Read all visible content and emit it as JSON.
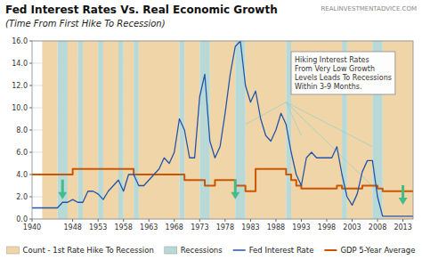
{
  "chart_data": {
    "type": "line",
    "title": "Fed Interest Rates Vs. Real Economic Growth",
    "subtitle": "(Time From First Hike To Recession)",
    "annotations": [
      {
        "text": "REALINVESTMENTADVICE.COM"
      },
      {
        "text": "Hiking Interest Rates\nFrom Very Low Growth\nLevels Leads To Recessions\nWithin 3-9 Months.",
        "x": 1991,
        "y": 11.2
      }
    ],
    "xlim": [
      1940,
      2015
    ],
    "ylim": [
      0.0,
      16.0
    ],
    "xticks": [
      1940,
      1948,
      1953,
      1958,
      1963,
      1968,
      1973,
      1978,
      1983,
      1988,
      1993,
      1998,
      2003,
      2008,
      2013
    ],
    "yticks": [
      {
        "value": 0.0,
        "label": "0.0"
      },
      {
        "value": 2.0,
        "label": "2.0"
      },
      {
        "value": 4.0,
        "label": "4.0"
      },
      {
        "value": 6.0,
        "label": "6.0"
      },
      {
        "value": 8.0,
        "label": "8.0"
      },
      {
        "value": 10.0,
        "label": "10.0"
      },
      {
        "value": 12.0,
        "label": "12.0"
      },
      {
        "value": 14.0,
        "label": "14.0"
      },
      {
        "value": 16.0,
        "label": "16.0"
      }
    ],
    "grid": true,
    "legend": "bottom",
    "series": [
      {
        "name": "Count - 1st Rate Hike To Recession",
        "type": "band",
        "color": "#f0d5a8",
        "bands": [
          [
            1942,
            1945
          ],
          [
            1947,
            1949
          ],
          [
            1950,
            1953
          ],
          [
            1954,
            1957
          ],
          [
            1958,
            1960
          ],
          [
            1961,
            1969
          ],
          [
            1970,
            1973
          ],
          [
            1975,
            1980
          ],
          [
            1982,
            1990
          ],
          [
            1991,
            2001
          ],
          [
            2002,
            2007
          ],
          [
            2009,
            2015
          ]
        ]
      },
      {
        "name": "Recessions",
        "type": "band",
        "color": "#b8d9d5",
        "bands": [
          [
            1945,
            1947
          ],
          [
            1949,
            1950
          ],
          [
            1953,
            1954
          ],
          [
            1957,
            1958
          ],
          [
            1960,
            1961
          ],
          [
            1969,
            1970
          ],
          [
            1973,
            1975
          ],
          [
            1980,
            1982
          ],
          [
            1990,
            1991
          ],
          [
            2001,
            2002
          ],
          [
            2007,
            2009
          ]
        ]
      },
      {
        "name": "Fed Interest Rate",
        "type": "line",
        "color": "#2255aa",
        "x": [
          1940,
          1941,
          1942,
          1943,
          1944,
          1945,
          1946,
          1947,
          1948,
          1949,
          1950,
          1951,
          1952,
          1953,
          1954,
          1955,
          1956,
          1957,
          1958,
          1959,
          1960,
          1961,
          1962,
          1963,
          1964,
          1965,
          1966,
          1967,
          1968,
          1969,
          1970,
          1971,
          1972,
          1973,
          1974,
          1975,
          1976,
          1977,
          1978,
          1979,
          1980,
          1981,
          1982,
          1983,
          1984,
          1985,
          1986,
          1987,
          1988,
          1989,
          1990,
          1991,
          1992,
          1993,
          1994,
          1995,
          1996,
          1997,
          1998,
          1999,
          2000,
          2001,
          2002,
          2003,
          2004,
          2005,
          2006,
          2007,
          2008,
          2009,
          2010,
          2011,
          2012,
          2013,
          2014,
          2015
        ],
        "values": [
          1.0,
          1.0,
          1.0,
          1.0,
          1.0,
          1.0,
          1.5,
          1.5,
          1.75,
          1.5,
          1.5,
          2.5,
          2.5,
          2.25,
          1.75,
          2.5,
          3.0,
          3.5,
          2.5,
          4.0,
          4.0,
          3.0,
          3.0,
          3.5,
          4.0,
          4.5,
          5.5,
          5.0,
          6.0,
          9.0,
          8.0,
          5.5,
          5.5,
          11.0,
          13.0,
          7.0,
          5.5,
          6.5,
          9.5,
          13.0,
          15.5,
          16.0,
          12.0,
          10.5,
          11.5,
          9.0,
          7.5,
          7.0,
          8.0,
          9.5,
          8.5,
          6.0,
          4.0,
          3.0,
          5.5,
          6.0,
          5.5,
          5.5,
          5.5,
          5.5,
          6.5,
          4.0,
          2.0,
          1.25,
          2.25,
          4.25,
          5.25,
          5.25,
          2.0,
          0.25,
          0.25,
          0.25,
          0.25,
          0.25,
          0.25,
          0.25
        ]
      },
      {
        "name": "GDP 5-Year Average",
        "type": "step",
        "color": "#cc5500",
        "x": [
          1940,
          1941,
          1942,
          1943,
          1944,
          1945,
          1946,
          1947,
          1948,
          1949,
          1950,
          1951,
          1952,
          1953,
          1954,
          1955,
          1956,
          1957,
          1958,
          1959,
          1960,
          1961,
          1962,
          1963,
          1964,
          1965,
          1966,
          1967,
          1968,
          1969,
          1970,
          1971,
          1972,
          1973,
          1974,
          1975,
          1976,
          1977,
          1978,
          1979,
          1980,
          1981,
          1982,
          1983,
          1984,
          1985,
          1986,
          1987,
          1988,
          1989,
          1990,
          1991,
          1992,
          1993,
          1994,
          1995,
          1996,
          1997,
          1998,
          1999,
          2000,
          2001,
          2002,
          2003,
          2004,
          2005,
          2006,
          2007,
          2008,
          2009,
          2010,
          2011,
          2012,
          2013,
          2014,
          2015
        ],
        "values": [
          4.0,
          4.0,
          4.0,
          4.0,
          4.0,
          4.0,
          4.0,
          4.0,
          4.5,
          4.5,
          4.5,
          4.5,
          4.5,
          4.5,
          4.5,
          4.5,
          4.5,
          4.5,
          4.5,
          4.5,
          4.0,
          4.0,
          4.0,
          4.0,
          4.0,
          4.0,
          4.0,
          4.0,
          4.0,
          4.0,
          3.5,
          3.5,
          3.5,
          3.5,
          3.0,
          3.0,
          3.5,
          3.5,
          3.5,
          3.5,
          3.0,
          3.0,
          2.5,
          2.5,
          4.5,
          4.5,
          4.5,
          4.5,
          4.5,
          4.5,
          4.0,
          3.5,
          3.0,
          2.75,
          2.75,
          2.75,
          2.75,
          2.75,
          2.75,
          2.75,
          3.0,
          2.75,
          2.75,
          2.75,
          2.75,
          3.0,
          3.0,
          3.0,
          2.75,
          2.5,
          2.5,
          2.5,
          2.5,
          2.5,
          2.5,
          2.5
        ]
      },
      {
        "type": "arrow",
        "color": "#44bb88",
        "x": [
          1946,
          1980,
          2013
        ],
        "values": [
          2.5,
          2.5,
          2.0
        ]
      },
      {
        "type": "connector",
        "color": "#88cccc",
        "segments": [
          [
            1990,
            10.5,
            1982,
            8.5
          ],
          [
            1990,
            10.5,
            1993,
            7.5
          ],
          [
            1990,
            10.5,
            2007,
            6.5
          ],
          [
            1990,
            10.5,
            2008,
            2.5
          ]
        ]
      }
    ]
  }
}
